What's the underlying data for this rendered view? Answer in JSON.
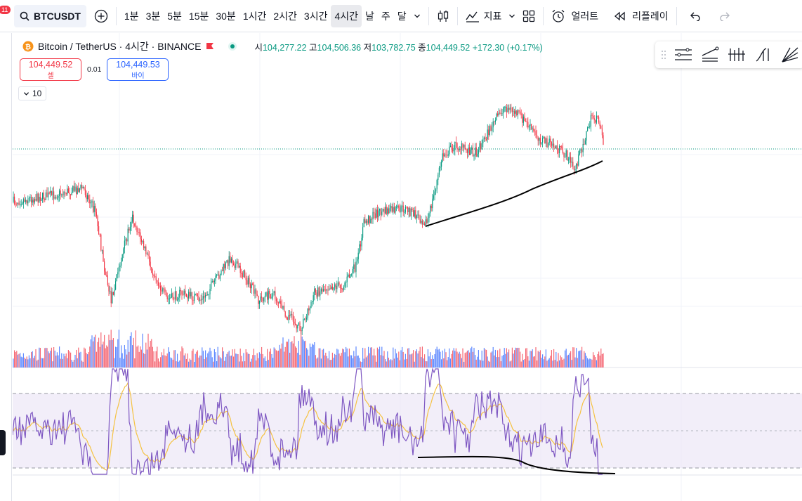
{
  "toolbar": {
    "notification_count": "11",
    "symbol": "BTCUSDT",
    "intervals": [
      "1분",
      "3분",
      "5분",
      "15분",
      "30분",
      "1시간",
      "2시간",
      "3시간",
      "4시간",
      "날",
      "주",
      "달"
    ],
    "active_interval": "4시간",
    "indicators_label": "지표",
    "alert_label": "얼러트",
    "replay_label": "리플레이"
  },
  "legend": {
    "pair": "Bitcoin / TetherUS · 4시간 · BINANCE",
    "open_label": "시",
    "open": "104,277.22",
    "high_label": "고",
    "high": "104,506.36",
    "low_label": "저",
    "low": "103,782.75",
    "close_label": "종",
    "close": "104,449.52",
    "change": "+172.30 (+0.17%)"
  },
  "order": {
    "sell_price": "104,449.52",
    "sell_label": "셀",
    "spread": "0.01",
    "buy_price": "104,449.53",
    "buy_label": "바이"
  },
  "volume_toggle": "10",
  "colors": {
    "up": "#089981",
    "down": "#f23645",
    "buy": "#2962ff",
    "rsi_line": "#7e57c2",
    "rsi_ma": "#f5c242",
    "rsi_band": "#ede7f6"
  }
}
